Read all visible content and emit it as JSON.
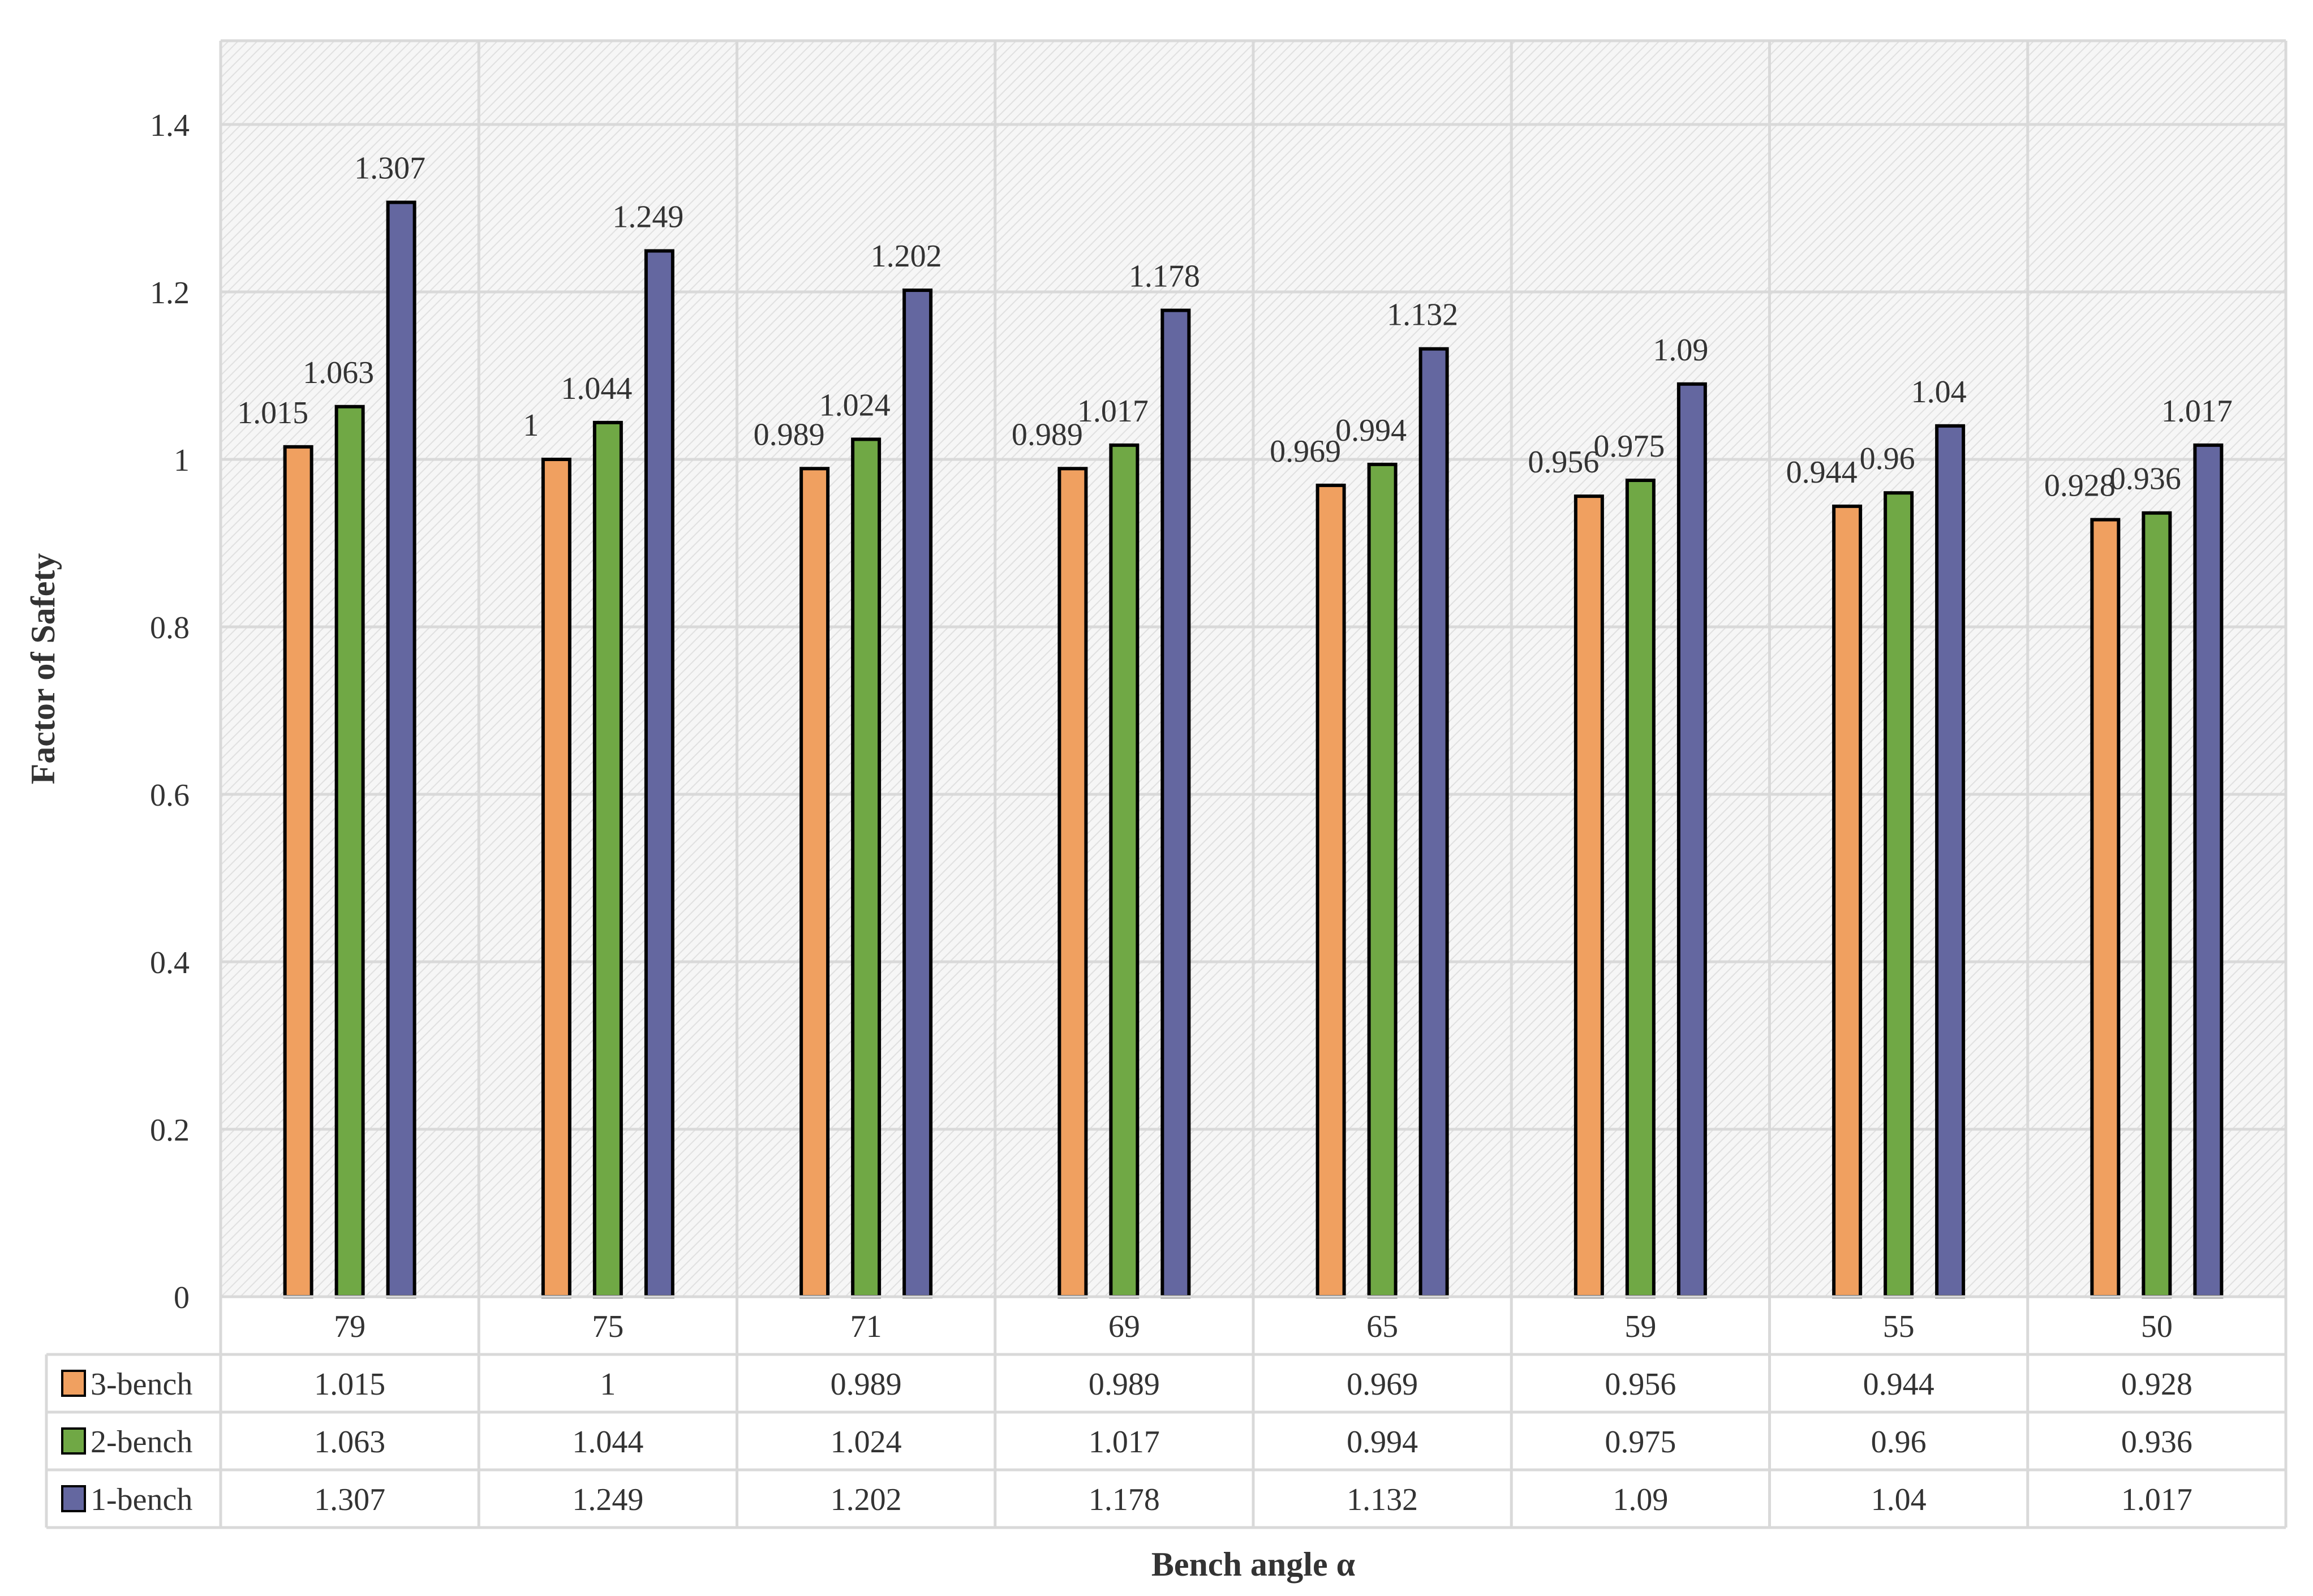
{
  "chart_data": {
    "type": "bar",
    "title": "",
    "xlabel": "Bench angle  α",
    "ylabel": "Factor of Safety",
    "ylim": [
      0,
      1.5
    ],
    "yticks": [
      0,
      0.2,
      0.4,
      0.6,
      0.8,
      1,
      1.2,
      1.4
    ],
    "ytick_labels": [
      "0",
      "0.2",
      "0.4",
      "0.6",
      "0.8",
      "1",
      "1.2",
      "1.4"
    ],
    "categories": [
      "79",
      "75",
      "71",
      "69",
      "65",
      "59",
      "55",
      "50"
    ],
    "grid": true,
    "legend": "data-table",
    "series": [
      {
        "name": "3-bench",
        "color": "#F0A060",
        "values": [
          1.015,
          1,
          0.989,
          0.989,
          0.969,
          0.956,
          0.944,
          0.928
        ],
        "labels": [
          "1.015",
          "1",
          "0.989",
          "0.989",
          "0.969",
          "0.956",
          "0.944",
          "0.928"
        ]
      },
      {
        "name": "2-bench",
        "color": "#70A845",
        "values": [
          1.063,
          1.044,
          1.024,
          1.017,
          0.994,
          0.975,
          0.96,
          0.936
        ],
        "labels": [
          "1.063",
          "1.044",
          "1.024",
          "1.017",
          "0.994",
          "0.975",
          "0.96",
          "0.936"
        ]
      },
      {
        "name": "1-bench",
        "color": "#6467A0",
        "values": [
          1.307,
          1.249,
          1.202,
          1.178,
          1.132,
          1.09,
          1.04,
          1.017
        ],
        "labels": [
          "1.307",
          "1.249",
          "1.202",
          "1.178",
          "1.132",
          "1.09",
          "1.04",
          "1.017"
        ]
      }
    ]
  }
}
